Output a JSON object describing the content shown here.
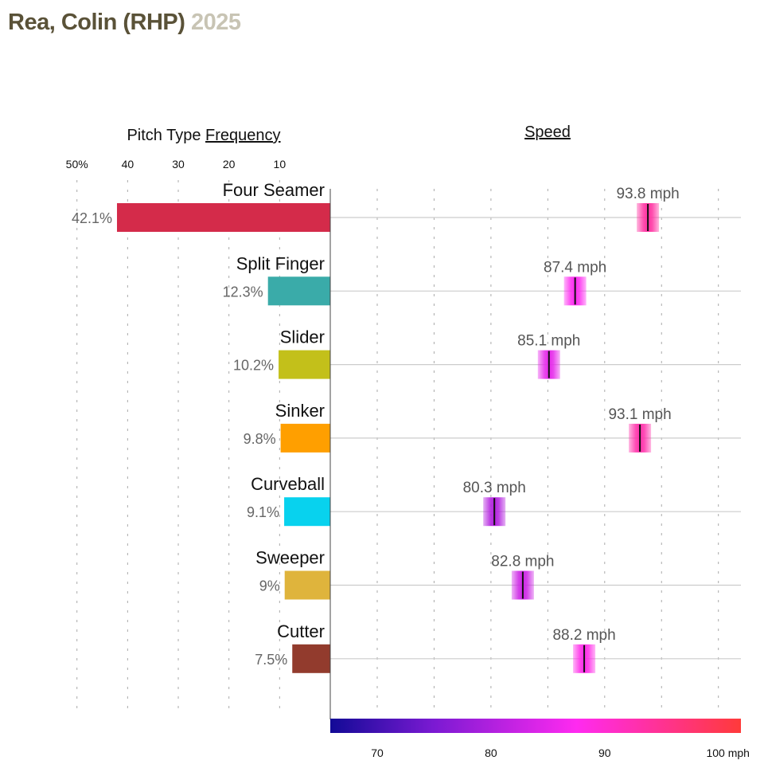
{
  "title": {
    "name": "Rea, Colin (RHP)",
    "year": "2025"
  },
  "chart_data": {
    "type": "bar",
    "frequency_title_prefix": "Pitch Type ",
    "frequency_title_link": "Frequency",
    "speed_title": "Speed",
    "frequency_ticks": [
      "50%",
      "40",
      "30",
      "20",
      "10"
    ],
    "frequency_tick_values": [
      50,
      40,
      30,
      20,
      10
    ],
    "speed_ticks": [
      "70",
      "80",
      "90",
      "100 mph"
    ],
    "speed_tick_values": [
      70,
      80,
      90,
      100
    ],
    "speed_range": [
      65.9,
      102
    ],
    "frequency_range": [
      0,
      50
    ],
    "pitches": [
      {
        "name": "Four Seamer",
        "freq": 42.1,
        "freq_label": "42.1%",
        "speed": 93.8,
        "speed_label": "93.8 mph",
        "color": "#d42b4a"
      },
      {
        "name": "Split Finger",
        "freq": 12.3,
        "freq_label": "12.3%",
        "speed": 87.4,
        "speed_label": "87.4 mph",
        "color": "#3aaba9"
      },
      {
        "name": "Slider",
        "freq": 10.2,
        "freq_label": "10.2%",
        "speed": 85.1,
        "speed_label": "85.1 mph",
        "color": "#c3c01a"
      },
      {
        "name": "Sinker",
        "freq": 9.8,
        "freq_label": "9.8%",
        "speed": 93.1,
        "speed_label": "93.1 mph",
        "color": "#ff9f00"
      },
      {
        "name": "Curveball",
        "freq": 9.1,
        "freq_label": "9.1%",
        "speed": 80.3,
        "speed_label": "80.3 mph",
        "color": "#08d2ee"
      },
      {
        "name": "Sweeper",
        "freq": 9.0,
        "freq_label": "9%",
        "speed": 82.8,
        "speed_label": "82.8 mph",
        "color": "#dfb43c"
      },
      {
        "name": "Cutter",
        "freq": 7.5,
        "freq_label": "7.5%",
        "speed": 88.2,
        "speed_label": "88.2 mph",
        "color": "#923b2d"
      }
    ]
  }
}
